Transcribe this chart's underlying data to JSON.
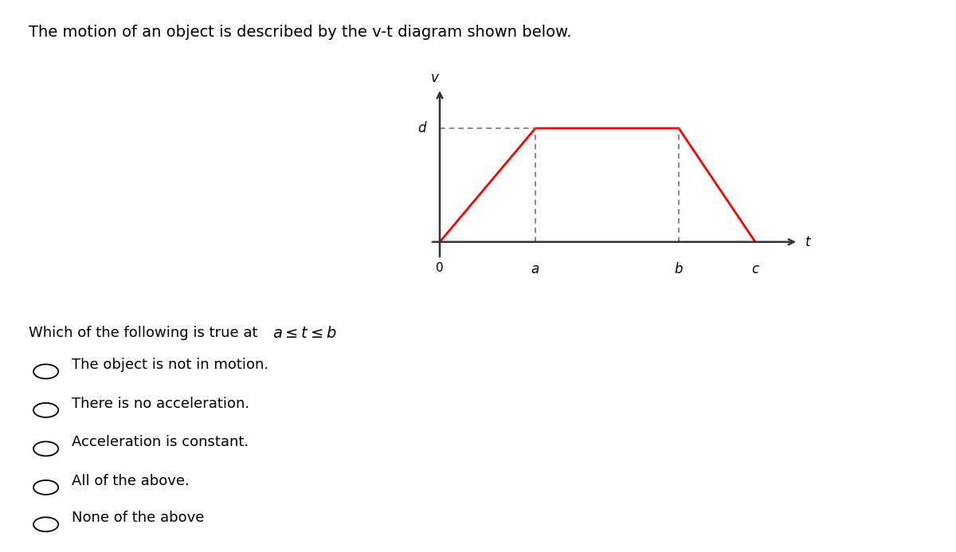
{
  "title": "The motion of an object is described by the v-t diagram shown below.",
  "question_normal": "Which of the following is true at ",
  "question_math": "$a \\leq t \\leq b$",
  "options": [
    "The object is not in motion.",
    "There is no acceleration.",
    "Acceleration is constant.",
    "All of the above.",
    "None of the above"
  ],
  "graph": {
    "line_color": "#ff0000",
    "dashed_color": "#777777",
    "axis_color": "#333333"
  },
  "background_color": "#ffffff",
  "text_color": "#000000",
  "font_size_title": 14,
  "font_size_options": 13,
  "font_size_question": 13
}
